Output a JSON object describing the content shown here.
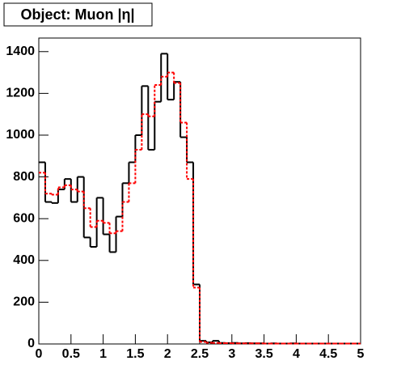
{
  "chart_data": {
    "type": "step-histogram",
    "title": "Object: Muon |η|",
    "bins": [
      0,
      0.1,
      0.2,
      0.3,
      0.4,
      0.5,
      0.6,
      0.7,
      0.8,
      0.9,
      1,
      1.1,
      1.2,
      1.3,
      1.4,
      1.5,
      1.6,
      1.7,
      1.8,
      1.9,
      2,
      2.1,
      2.2,
      2.3,
      2.4,
      2.5,
      2.6,
      2.7,
      2.8,
      2.9,
      3,
      3.1,
      3.2,
      3.3,
      3.4,
      3.5,
      3.6,
      3.7,
      3.8,
      3.9,
      4,
      4.1,
      4.2,
      4.3,
      4.4,
      4.5,
      4.6,
      4.7,
      4.8,
      4.9,
      5
    ],
    "series": [
      {
        "color": "#000000",
        "dashed": false,
        "values": [
          870,
          680,
          675,
          740,
          790,
          680,
          800,
          510,
          465,
          700,
          525,
          440,
          610,
          770,
          870,
          1000,
          1235,
          930,
          1160,
          1390,
          1170,
          1255,
          990,
          870,
          285,
          15,
          8,
          15,
          5,
          4,
          5,
          3,
          4,
          3,
          3,
          2,
          3,
          2,
          2,
          3,
          2,
          2,
          2,
          2,
          2,
          2,
          2,
          2,
          2,
          2
        ]
      },
      {
        "color": "#ff0000",
        "dashed": true,
        "values": [
          820,
          720,
          715,
          750,
          760,
          740,
          730,
          650,
          560,
          590,
          580,
          530,
          540,
          680,
          770,
          930,
          1100,
          1090,
          1240,
          1280,
          1300,
          1250,
          1060,
          790,
          270,
          10,
          6,
          5,
          4,
          4,
          3,
          3,
          3,
          3,
          3,
          2,
          2,
          2,
          2,
          2,
          2,
          2,
          2,
          2,
          2,
          2,
          2,
          2,
          2,
          2
        ]
      }
    ],
    "xlim": [
      0,
      5
    ],
    "ylim": [
      0,
      1465
    ],
    "xticks": [
      0,
      0.5,
      1,
      1.5,
      2,
      2.5,
      3,
      3.5,
      4,
      4.5,
      5
    ],
    "yticks": [
      0,
      200,
      400,
      600,
      800,
      1000,
      1200,
      1400
    ]
  }
}
